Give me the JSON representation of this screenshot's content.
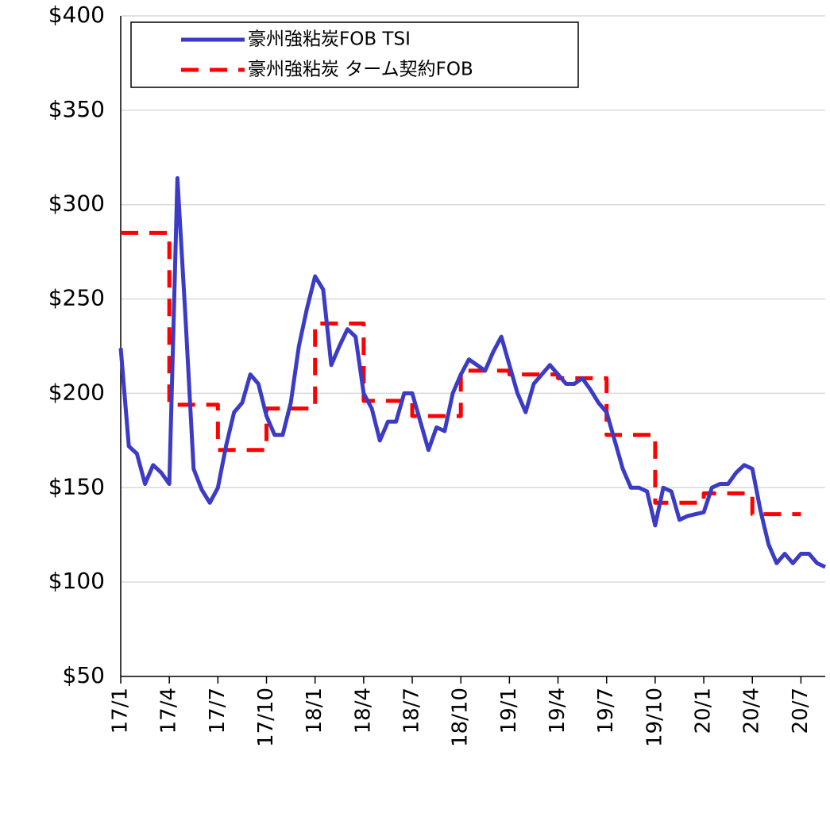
{
  "chart_data": {
    "type": "line",
    "categories": [
      "17/1",
      null,
      null,
      null,
      null,
      null,
      "17/4",
      null,
      null,
      null,
      null,
      null,
      "17/7",
      null,
      null,
      null,
      null,
      null,
      "17/10",
      null,
      null,
      null,
      null,
      null,
      "18/1",
      null,
      null,
      null,
      null,
      null,
      "18/4",
      null,
      null,
      null,
      null,
      null,
      "18/7",
      null,
      null,
      null,
      null,
      null,
      "18/10",
      null,
      null,
      null,
      null,
      null,
      "19/1",
      null,
      null,
      null,
      null,
      null,
      "19/4",
      null,
      null,
      null,
      null,
      null,
      "19/7",
      null,
      null,
      null,
      null,
      null,
      "19/10",
      null,
      null,
      null,
      null,
      null,
      "20/1",
      null,
      null,
      null,
      null,
      null,
      "20/4",
      null,
      null,
      null,
      null,
      null,
      "20/7",
      null,
      null,
      null
    ],
    "series": [
      {
        "name": "豪州強粘炭FOB TSI",
        "color": "#3b3bc6",
        "dash": false,
        "step": false,
        "values": [
          224,
          172,
          168,
          152,
          162,
          158,
          152,
          314,
          240,
          160,
          149,
          142,
          150,
          172,
          190,
          195,
          210,
          205,
          188,
          178,
          178,
          195,
          225,
          245,
          262,
          255,
          215,
          225,
          234,
          230,
          200,
          192,
          175,
          185,
          185,
          200,
          200,
          185,
          170,
          182,
          180,
          200,
          210,
          218,
          215,
          212,
          222,
          230,
          215,
          200,
          190,
          205,
          210,
          215,
          210,
          205,
          205,
          208,
          202,
          195,
          190,
          175,
          160,
          150,
          150,
          148,
          130,
          150,
          148,
          133,
          135,
          136,
          137,
          150,
          152,
          152,
          158,
          162,
          160,
          138,
          120,
          110,
          115,
          110,
          115,
          115,
          110,
          108
        ]
      },
      {
        "name": "豪州強粘炭 ターム契約FOB",
        "color": "#ff0000",
        "dash": true,
        "step": true,
        "values": [
          285,
          285,
          285,
          285,
          285,
          285,
          194,
          194,
          194,
          194,
          194,
          194,
          170,
          170,
          170,
          170,
          170,
          170,
          192,
          192,
          192,
          192,
          192,
          192,
          237,
          237,
          237,
          237,
          237,
          237,
          196,
          196,
          196,
          196,
          196,
          196,
          188,
          188,
          188,
          188,
          188,
          188,
          212,
          212,
          212,
          212,
          212,
          212,
          210,
          210,
          210,
          210,
          210,
          210,
          208,
          208,
          208,
          208,
          208,
          208,
          178,
          178,
          178,
          178,
          178,
          178,
          142,
          142,
          142,
          142,
          142,
          142,
          147,
          147,
          147,
          147,
          147,
          147,
          136,
          136,
          136,
          136,
          136,
          136,
          null,
          null,
          null,
          null
        ]
      }
    ],
    "ylim": [
      50,
      400
    ],
    "yticks": [
      {
        "value": 50,
        "label": "$50"
      },
      {
        "value": 100,
        "label": "$100"
      },
      {
        "value": 150,
        "label": "$150"
      },
      {
        "value": 200,
        "label": "$200"
      },
      {
        "value": 250,
        "label": "$250"
      },
      {
        "value": 300,
        "label": "$300"
      },
      {
        "value": 350,
        "label": "$350"
      },
      {
        "value": 400,
        "label": "$400"
      }
    ],
    "grid": true,
    "legend": "upper-left"
  }
}
